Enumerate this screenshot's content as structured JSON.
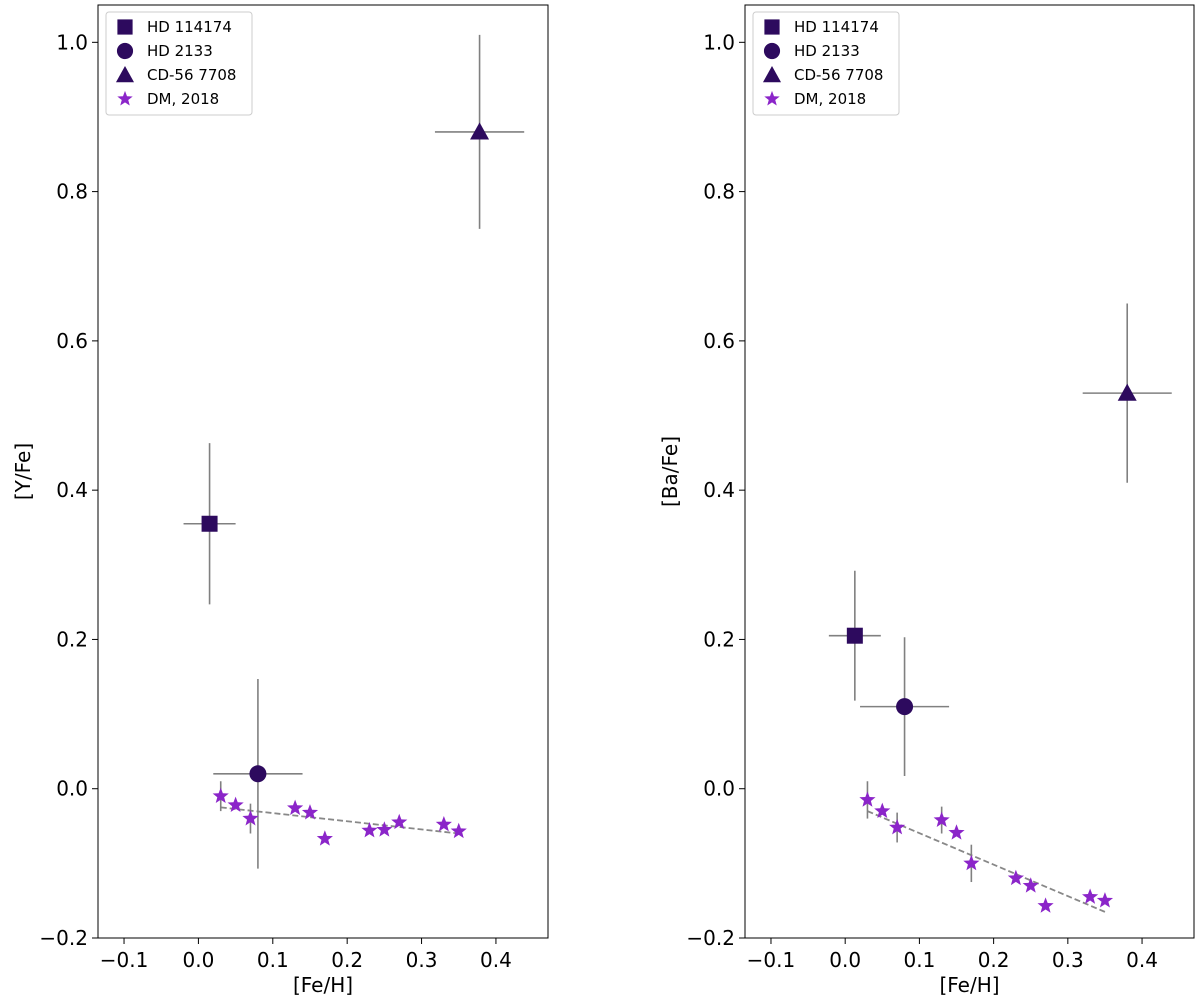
{
  "chart_data": [
    {
      "type": "scatter",
      "xlabel": "[Fe/H]",
      "ylabel": "[Y/Fe]",
      "xlim": [
        -0.135,
        0.47
      ],
      "ylim": [
        -0.2,
        1.05
      ],
      "xticks": [
        -0.1,
        0.0,
        0.1,
        0.2,
        0.3,
        0.4
      ],
      "xtick_labels": [
        "−0.1",
        "0.0",
        "0.1",
        "0.2",
        "0.3",
        "0.4"
      ],
      "yticks": [
        -0.2,
        0.0,
        0.2,
        0.4,
        0.6,
        0.8,
        1.0
      ],
      "ytick_labels": [
        "−0.2",
        "0.0",
        "0.2",
        "0.4",
        "0.6",
        "0.8",
        "1.0"
      ],
      "legend_position": "top-left",
      "series": [
        {
          "name": "HD 114174",
          "marker": "square",
          "color": "#2d0a5e",
          "points": [
            {
              "x": 0.015,
              "y": 0.355,
              "xerr": 0.035,
              "yerr": 0.108
            }
          ]
        },
        {
          "name": "HD 2133",
          "marker": "circle",
          "color": "#2d0a5e",
          "points": [
            {
              "x": 0.08,
              "y": 0.02,
              "xerr": 0.06,
              "yerr": 0.127
            }
          ]
        },
        {
          "name": "CD-56 7708",
          "marker": "triangle",
          "color": "#2d0a5e",
          "points": [
            {
              "x": 0.378,
              "y": 0.88,
              "xerr": 0.06,
              "yerr": 0.13
            }
          ]
        },
        {
          "name": "DM, 2018",
          "marker": "star",
          "color": "#8b25c9",
          "points": [
            {
              "x": 0.03,
              "y": -0.01,
              "yerr": 0.02
            },
            {
              "x": 0.05,
              "y": -0.022
            },
            {
              "x": 0.07,
              "y": -0.04,
              "yerr": 0.02
            },
            {
              "x": 0.13,
              "y": -0.026
            },
            {
              "x": 0.15,
              "y": -0.032
            },
            {
              "x": 0.17,
              "y": -0.067
            },
            {
              "x": 0.23,
              "y": -0.056
            },
            {
              "x": 0.25,
              "y": -0.055
            },
            {
              "x": 0.27,
              "y": -0.045
            },
            {
              "x": 0.33,
              "y": -0.048
            },
            {
              "x": 0.35,
              "y": -0.057
            }
          ]
        }
      ],
      "fit_line": {
        "x": [
          0.03,
          0.35
        ],
        "y": [
          -0.025,
          -0.06
        ],
        "style": "dashed",
        "color": "#888888"
      }
    },
    {
      "type": "scatter",
      "xlabel": "[Fe/H]",
      "ylabel": "[Ba/Fe]",
      "xlim": [
        -0.135,
        0.47
      ],
      "ylim": [
        -0.2,
        1.05
      ],
      "xticks": [
        -0.1,
        0.0,
        0.1,
        0.2,
        0.3,
        0.4
      ],
      "xtick_labels": [
        "−0.1",
        "0.0",
        "0.1",
        "0.2",
        "0.3",
        "0.4"
      ],
      "yticks": [
        -0.2,
        0.0,
        0.2,
        0.4,
        0.6,
        0.8,
        1.0
      ],
      "ytick_labels": [
        "−0.2",
        "0.0",
        "0.2",
        "0.4",
        "0.6",
        "0.8",
        "1.0"
      ],
      "legend_position": "top-left",
      "series": [
        {
          "name": "HD 114174",
          "marker": "square",
          "color": "#2d0a5e",
          "points": [
            {
              "x": 0.013,
              "y": 0.205,
              "xerr": 0.035,
              "yerr": 0.087
            }
          ]
        },
        {
          "name": "HD 2133",
          "marker": "circle",
          "color": "#2d0a5e",
          "points": [
            {
              "x": 0.08,
              "y": 0.11,
              "xerr": 0.06,
              "yerr": 0.093
            }
          ]
        },
        {
          "name": "CD-56 7708",
          "marker": "triangle",
          "color": "#2d0a5e",
          "points": [
            {
              "x": 0.38,
              "y": 0.53,
              "xerr": 0.06,
              "yerr": 0.12
            }
          ]
        },
        {
          "name": "DM, 2018",
          "marker": "star",
          "color": "#8b25c9",
          "points": [
            {
              "x": 0.03,
              "y": -0.015,
              "yerr": 0.025
            },
            {
              "x": 0.05,
              "y": -0.03
            },
            {
              "x": 0.07,
              "y": -0.052,
              "yerr": 0.02
            },
            {
              "x": 0.13,
              "y": -0.042,
              "yerr": 0.018
            },
            {
              "x": 0.15,
              "y": -0.059
            },
            {
              "x": 0.17,
              "y": -0.1,
              "yerr": 0.025
            },
            {
              "x": 0.23,
              "y": -0.12
            },
            {
              "x": 0.25,
              "y": -0.13
            },
            {
              "x": 0.27,
              "y": -0.157
            },
            {
              "x": 0.33,
              "y": -0.145
            },
            {
              "x": 0.35,
              "y": -0.15
            }
          ]
        }
      ],
      "fit_line": {
        "x": [
          0.03,
          0.35
        ],
        "y": [
          -0.03,
          -0.165
        ],
        "style": "dashed",
        "color": "#888888"
      }
    }
  ]
}
